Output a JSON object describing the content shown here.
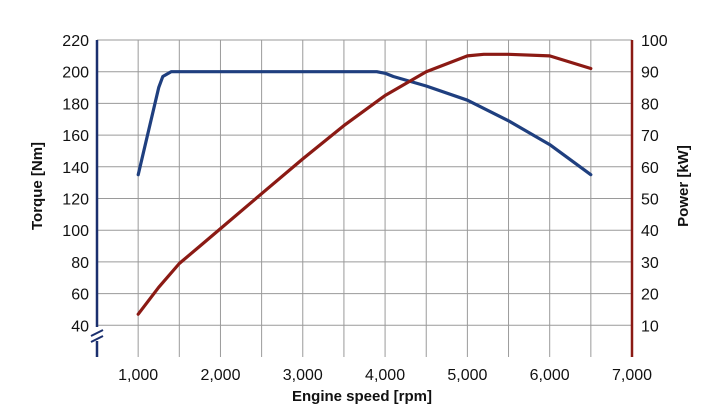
{
  "chart_data": {
    "type": "line",
    "title": "",
    "xlabel": "Engine speed [rpm]",
    "ylabel_left": "Torque [Nm]",
    "ylabel_right": "Power [kW]",
    "xlim": [
      500,
      7000
    ],
    "ylim_left": [
      20,
      220
    ],
    "ylim_right": [
      0,
      100
    ],
    "x_ticks": [
      1000,
      2000,
      3000,
      4000,
      5000,
      6000,
      7000
    ],
    "x_tick_labels": [
      "1,000",
      "2,000",
      "3,000",
      "4,000",
      "5,000",
      "6,000",
      "7,000"
    ],
    "y_left_ticks": [
      40,
      60,
      80,
      100,
      120,
      140,
      160,
      180,
      200,
      220
    ],
    "y_left_tick_labels": [
      "40",
      "60",
      "80",
      "100",
      "120",
      "140",
      "160",
      "180",
      "200",
      "220"
    ],
    "y_right_ticks": [
      10,
      20,
      30,
      40,
      50,
      60,
      70,
      80,
      90,
      100
    ],
    "y_right_tick_labels": [
      "10",
      "20",
      "30",
      "40",
      "50",
      "60",
      "70",
      "80",
      "90",
      "100"
    ],
    "grid": true,
    "axis_break": "left-bottom",
    "colors": {
      "torque": "#1f3f7f",
      "power": "#8b1a14",
      "left_axis": "#1a2f6e",
      "right_axis": "#8b1a14",
      "grid": "#9a9a9a"
    },
    "series": [
      {
        "key": "torque",
        "axis": "left",
        "x": [
          1000,
          1250,
          1300,
          1400,
          1500,
          2000,
          3000,
          3500,
          3900,
          4000,
          4100,
          4500,
          5000,
          5500,
          6000,
          6500
        ],
        "values": [
          135,
          190,
          197,
          200,
          200,
          200,
          200,
          200,
          200,
          199,
          197,
          191,
          182,
          169,
          154,
          135
        ]
      },
      {
        "key": "power",
        "axis": "right",
        "x": [
          1000,
          1250,
          1500,
          1750,
          2000,
          2500,
          3000,
          3500,
          4000,
          4500,
          5000,
          5200,
          5500,
          6000,
          6500
        ],
        "values": [
          13.5,
          22,
          29.5,
          35,
          40.5,
          51.5,
          62.5,
          73,
          82.5,
          90,
          95,
          95.5,
          95.5,
          95,
          91
        ]
      }
    ]
  }
}
